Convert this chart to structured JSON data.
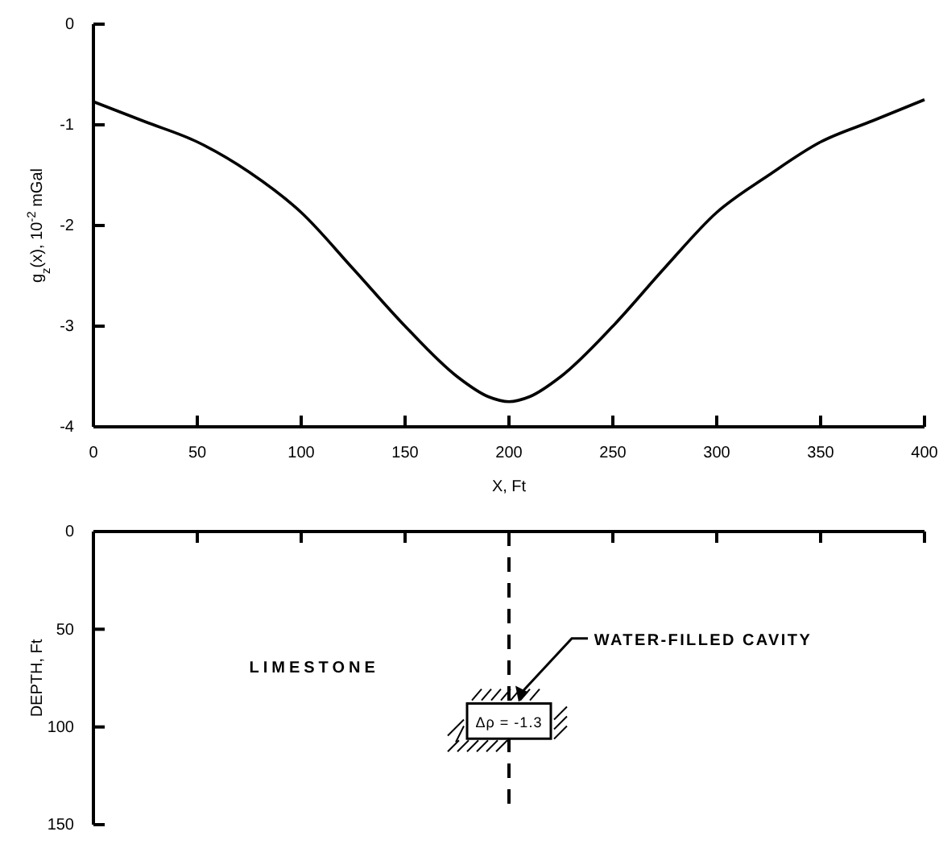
{
  "chart_data": [
    {
      "type": "line",
      "xlabel": "X, Ft",
      "ylabel": "g$_{z}$(x), 10$^{-2}$ mGal",
      "x": [
        0,
        25,
        50,
        75,
        100,
        125,
        150,
        175,
        190,
        200,
        210,
        225,
        250,
        275,
        300,
        325,
        350,
        375,
        400
      ],
      "series": [
        {
          "color": "#000000",
          "values": [
            -0.77,
            -0.97,
            -1.17,
            -1.47,
            -1.87,
            -2.43,
            -3.0,
            -3.5,
            -3.7,
            -3.75,
            -3.7,
            -3.5,
            -3.0,
            -2.42,
            -1.87,
            -1.5,
            -1.17,
            -0.96,
            -0.75
          ]
        }
      ],
      "xlim": [
        0,
        400
      ],
      "xticks": [
        0,
        50,
        100,
        150,
        200,
        250,
        300,
        350,
        400
      ],
      "ylim": [
        -4,
        0
      ],
      "yticks": [
        -4,
        -3,
        -2,
        -1,
        0
      ]
    },
    {
      "type": "bar",
      "ylabel": "DEPTH, Ft",
      "xlim": [
        0,
        400
      ],
      "xticks": [
        0,
        50,
        100,
        150,
        200,
        250,
        300,
        350,
        400
      ],
      "x": [
        200
      ],
      "series": [
        {
          "color": "#ffffff",
          "values": [
            18
          ],
          "base": [
            88
          ]
        }
      ],
      "ylim": [
        150,
        0
      ],
      "yticks": [
        0,
        50,
        100,
        150
      ],
      "tick_labels": "y",
      "ref_lines": [
        {
          "axis": "x",
          "value": 200,
          "line_style": "dashed"
        }
      ],
      "annotations": [
        "LIMESTONE",
        "WATER-FILLED CAVITY",
        {
          "text": "Δρ = -1.3",
          "x": 200,
          "y": 97
        }
      ]
    }
  ]
}
